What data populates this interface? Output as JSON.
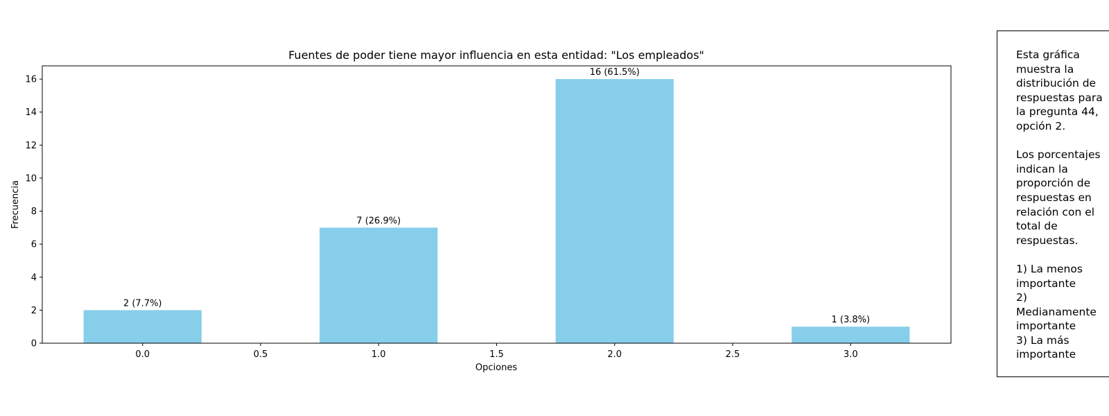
{
  "chart_data": {
    "type": "bar",
    "title": "Fuentes de poder tiene mayor influencia en esta entidad: \"Los empleados\"",
    "xlabel": "Opciones",
    "ylabel": "Frecuencia",
    "x": [
      0,
      1,
      2,
      3
    ],
    "values": [
      2,
      7,
      16,
      1
    ],
    "labels": [
      "2 (7.7%)",
      "7 (26.9%)",
      "16 (61.5%)",
      "1 (3.8%)"
    ],
    "bar_width": 0.5,
    "xlim": [
      -0.425,
      3.425
    ],
    "ylim": [
      0,
      16.8
    ],
    "xticks": [
      0.0,
      0.5,
      1.0,
      1.5,
      2.0,
      2.5,
      3.0
    ],
    "xtick_labels": [
      "0.0",
      "0.5",
      "1.0",
      "1.5",
      "2.0",
      "2.5",
      "3.0"
    ],
    "yticks": [
      0,
      2,
      4,
      6,
      8,
      10,
      12,
      14,
      16
    ],
    "ytick_labels": [
      "0",
      "2",
      "4",
      "6",
      "8",
      "10",
      "12",
      "14",
      "16"
    ],
    "grid": false,
    "bar_color": "#87CEEB"
  },
  "note": {
    "paragraphs": [
      "Esta gráfica\nmuestra la\ndistribución de\nrespuestas para\nla pregunta 44,\nopción 2.",
      "Los porcentajes\nindican la\nproporción de\nrespuestas en\nrelación con el\ntotal de\nrespuestas.",
      "1) La menos\nimportante\n2)\nMedianamente\nimportante\n3) La más\nimportante"
    ]
  }
}
